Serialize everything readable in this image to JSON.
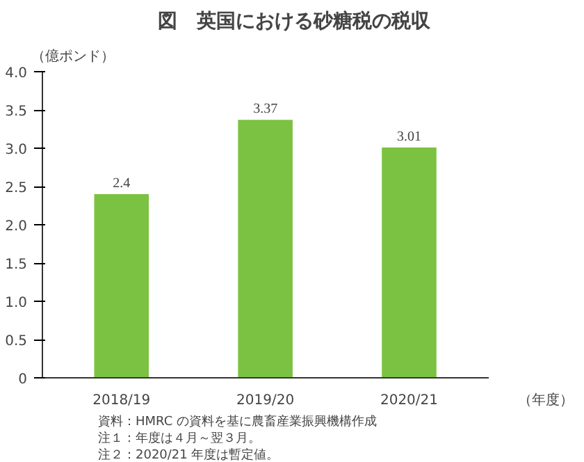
{
  "chart_data": {
    "type": "bar",
    "title": "図　英国における砂糖税の税収",
    "ylabel": "（億ポンド）",
    "xlabel": "（年度）",
    "categories": [
      "2018/19",
      "2019/20",
      "2020/21"
    ],
    "values": [
      2.4,
      3.37,
      3.01
    ],
    "color": "#7cc242",
    "ylim": [
      0,
      4
    ],
    "yticks": [
      0,
      {
        "value": 0.5,
        "label": "0.5"
      },
      {
        "value": 1,
        "label": "1.0"
      },
      {
        "value": 1.5,
        "label": "1.5"
      },
      {
        "value": 2,
        "label": "2.0"
      },
      {
        "value": 2.5,
        "label": "2.5"
      },
      {
        "value": 3,
        "label": "3.0"
      },
      {
        "value": 3.5,
        "label": "3.5"
      },
      {
        "value": 4,
        "label": "4.0"
      }
    ],
    "grid": false,
    "data_labels": true,
    "annotations": [
      "資料：HMRC の資料を基に農畜産業振興機構作成",
      "注１：年度は４月～翌３月。",
      "注２：2020/21 年度は暫定値。"
    ]
  }
}
